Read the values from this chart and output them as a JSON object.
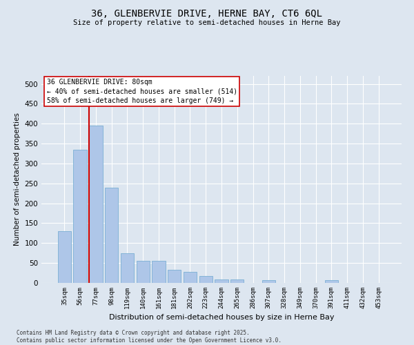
{
  "title_line1": "36, GLENBERVIE DRIVE, HERNE BAY, CT6 6QL",
  "title_line2": "Size of property relative to semi-detached houses in Herne Bay",
  "xlabel": "Distribution of semi-detached houses by size in Herne Bay",
  "ylabel": "Number of semi-detached properties",
  "categories": [
    "35sqm",
    "56sqm",
    "77sqm",
    "98sqm",
    "119sqm",
    "140sqm",
    "161sqm",
    "181sqm",
    "202sqm",
    "223sqm",
    "244sqm",
    "265sqm",
    "286sqm",
    "307sqm",
    "328sqm",
    "349sqm",
    "370sqm",
    "391sqm",
    "411sqm",
    "432sqm",
    "453sqm"
  ],
  "values": [
    130,
    335,
    395,
    240,
    75,
    55,
    55,
    33,
    28,
    18,
    8,
    8,
    0,
    7,
    0,
    0,
    0,
    7,
    0,
    0,
    0
  ],
  "bar_color": "#aec6e8",
  "bar_edge_color": "#7aafd4",
  "redline_index": 2,
  "annotation_title": "36 GLENBERVIE DRIVE: 80sqm",
  "annotation_line1": "← 40% of semi-detached houses are smaller (514)",
  "annotation_line2": "58% of semi-detached houses are larger (749) →",
  "annotation_box_facecolor": "#ffffff",
  "annotation_box_edgecolor": "#cc0000",
  "background_color": "#dde6f0",
  "plot_bg_color": "#dde6f0",
  "ylim": [
    0,
    520
  ],
  "yticks": [
    0,
    50,
    100,
    150,
    200,
    250,
    300,
    350,
    400,
    450,
    500
  ],
  "footer_line1": "Contains HM Land Registry data © Crown copyright and database right 2025.",
  "footer_line2": "Contains public sector information licensed under the Open Government Licence v3.0."
}
